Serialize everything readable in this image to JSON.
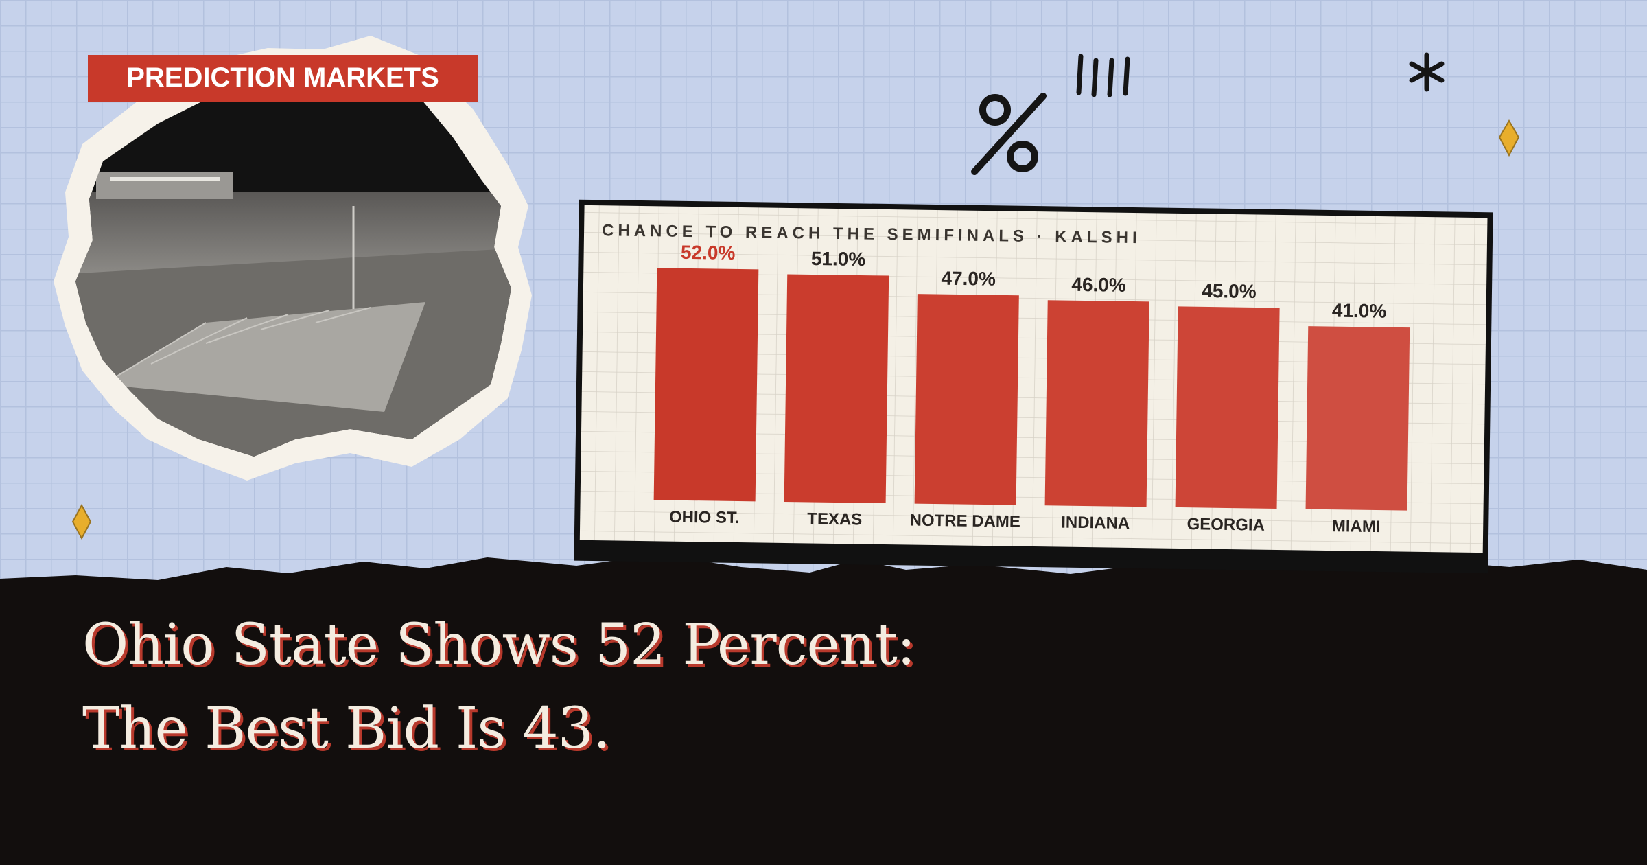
{
  "badge": "PREDICTION MARKETS",
  "headline": [
    "Ohio State Shows 52 Percent:",
    "The Best Bid Is 43."
  ],
  "chart_data": {
    "type": "bar",
    "title": "CHANCE TO REACH THE SEMIFINALS · KALSHI",
    "categories": [
      "OHIO ST.",
      "TEXAS",
      "NOTRE DAME",
      "INDIANA",
      "GEORGIA",
      "MIAMI"
    ],
    "values": [
      52,
      51,
      47,
      46,
      45,
      41
    ],
    "value_labels": [
      "52.0%",
      "51.0%",
      "47.0%",
      "46.0%",
      "45.0%",
      "41.0%"
    ],
    "colors": [
      "#c8392a",
      "#ca3c2d",
      "#cb3f30",
      "#cc4233",
      "#cd4537",
      "#cf4e41"
    ],
    "label_colors": [
      "#c8392a",
      "#2a2522",
      "#2a2522",
      "#2a2522",
      "#2a2522",
      "#2a2522"
    ]
  }
}
